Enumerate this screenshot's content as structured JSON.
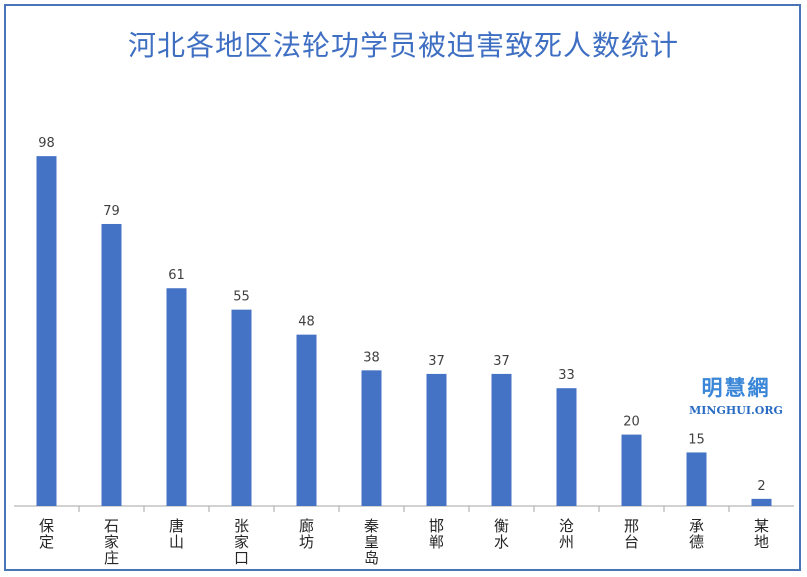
{
  "chart_data": {
    "type": "bar",
    "title": "河北各地区法轮功学员被迫害致死人数统计",
    "categories": [
      "保定",
      "石家庄",
      "唐山",
      "张家口",
      "廊坊",
      "秦皇岛",
      "邯郸",
      "衡水",
      "沧州",
      "邢台",
      "承德",
      "某地"
    ],
    "values": [
      98,
      79,
      61,
      55,
      48,
      38,
      37,
      37,
      33,
      20,
      15,
      2
    ],
    "ylim": [
      0,
      100
    ],
    "grid": false,
    "legend": "none",
    "bar_color": "#4472c4"
  },
  "watermark": {
    "cn": "明慧網",
    "en": "MINGHUI.ORG"
  },
  "colors": {
    "title": "#3f6fc2",
    "border": "#4a74b8",
    "axis": "#a6a6a6"
  }
}
